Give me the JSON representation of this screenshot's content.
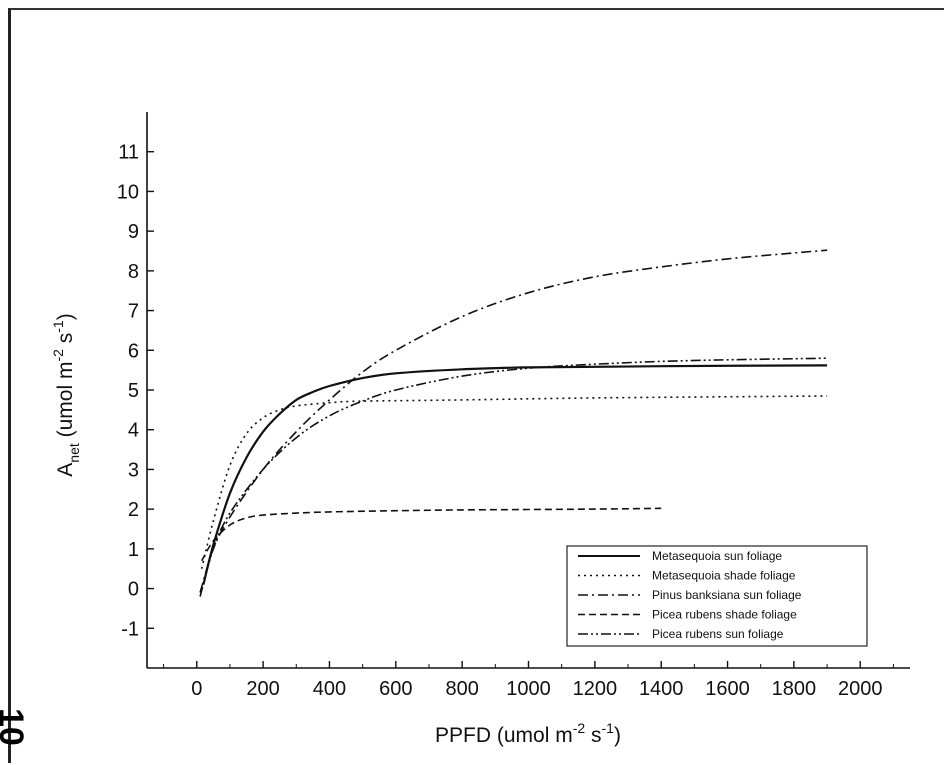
{
  "page_number": "10",
  "chart_data": {
    "type": "line",
    "title": "",
    "xlabel_base": "PPFD (umol m",
    "xlabel_exp": "-2",
    "xlabel_mid": " s",
    "xlabel_exp2": "-1",
    "xlabel_end": ")",
    "ylabel_main": "A",
    "ylabel_sub": "net",
    "ylabel_rest": " (umol m",
    "ylabel_exp": "-2",
    "ylabel_mid": " s",
    "ylabel_exp2": "-1",
    "ylabel_end": ")",
    "xlim": [
      -150,
      2150
    ],
    "ylim": [
      -2,
      12
    ],
    "x_ticks": [
      0,
      200,
      400,
      600,
      800,
      1000,
      1200,
      1400,
      1600,
      1800,
      2000
    ],
    "y_ticks": [
      -1,
      0,
      1,
      2,
      3,
      4,
      5,
      6,
      7,
      8,
      9,
      10,
      11
    ],
    "grid": false,
    "legend_position": "bottom-right",
    "series": [
      {
        "name": "Metasequoia sun foliage",
        "dash": "solid",
        "x": [
          20,
          50,
          100,
          150,
          200,
          250,
          300,
          350,
          400,
          500,
          600,
          800,
          1000,
          1400,
          1900
        ],
        "y": [
          0.1,
          1.1,
          2.4,
          3.3,
          3.95,
          4.4,
          4.75,
          4.95,
          5.1,
          5.3,
          5.42,
          5.52,
          5.57,
          5.6,
          5.62
        ]
      },
      {
        "name": "Metasequoia shade foliage",
        "dash": "dotted",
        "x": [
          15,
          50,
          100,
          150,
          200,
          250,
          300,
          400,
          500,
          800,
          1200,
          1900
        ],
        "y": [
          0.5,
          1.7,
          3.1,
          3.9,
          4.3,
          4.5,
          4.6,
          4.68,
          4.72,
          4.75,
          4.8,
          4.85
        ]
      },
      {
        "name": "Pinus banksiana sun foliage",
        "dash": "dashdot",
        "x": [
          10,
          50,
          100,
          200,
          300,
          400,
          500,
          600,
          800,
          1000,
          1200,
          1400,
          1600,
          1800,
          1900
        ],
        "y": [
          -0.1,
          1.0,
          1.8,
          3.0,
          3.95,
          4.75,
          5.45,
          6.0,
          6.85,
          7.45,
          7.85,
          8.1,
          8.3,
          8.45,
          8.52
        ]
      },
      {
        "name": "Picea rubens shade foliage",
        "dash": "dashed",
        "x": [
          15,
          50,
          100,
          150,
          200,
          300,
          400,
          600,
          800,
          1000,
          1200,
          1400
        ],
        "y": [
          0.7,
          1.2,
          1.6,
          1.78,
          1.85,
          1.9,
          1.93,
          1.96,
          1.98,
          1.99,
          2.0,
          2.02
        ]
      },
      {
        "name": "Picea rubens sun foliage",
        "dash": "dashdotdot",
        "x": [
          10,
          50,
          100,
          200,
          300,
          400,
          500,
          600,
          800,
          1000,
          1200,
          1400,
          1600,
          1900
        ],
        "y": [
          -0.2,
          1.0,
          1.9,
          3.0,
          3.8,
          4.35,
          4.72,
          5.0,
          5.35,
          5.55,
          5.65,
          5.72,
          5.76,
          5.8
        ]
      }
    ]
  }
}
